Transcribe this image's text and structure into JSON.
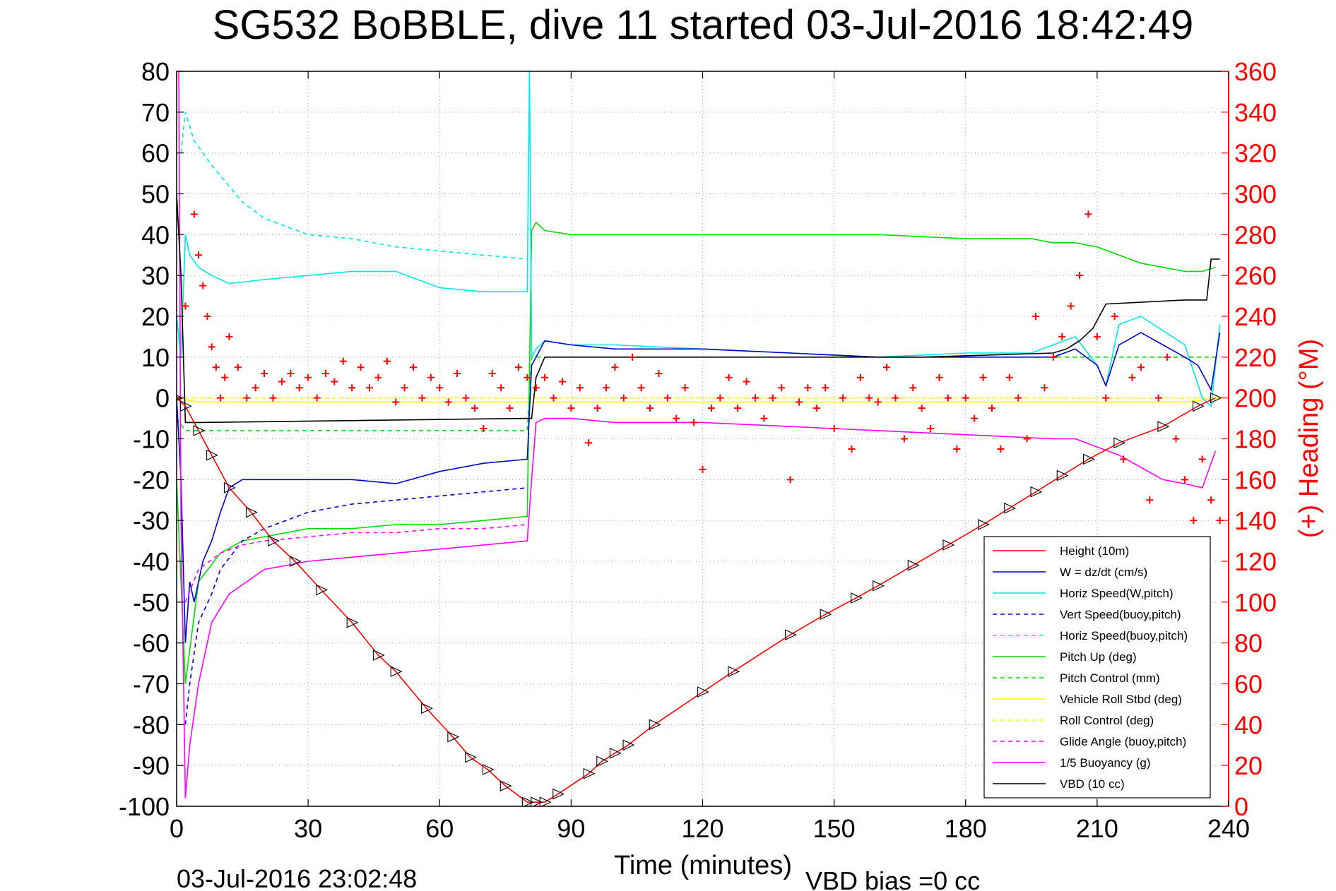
{
  "chart_data": {
    "type": "line",
    "title": "SG532 BoBBLE, dive 11 started 03-Jul-2016 18:42:49",
    "xlabel": "Time (minutes)",
    "ylabel": "",
    "y2label": "(+) Heading (°M)",
    "xlim": [
      0,
      240
    ],
    "ylim": [
      -100,
      80
    ],
    "y2lim": [
      0,
      360
    ],
    "xticks": [
      "0",
      "30",
      "60",
      "90",
      "120",
      "150",
      "180",
      "210",
      "240"
    ],
    "yticks": [
      "80",
      "70",
      "60",
      "50",
      "40",
      "30",
      "20",
      "10",
      "0",
      "-10",
      "-20",
      "-30",
      "-40",
      "-50",
      "-60",
      "-70",
      "-80",
      "-90",
      "-100"
    ],
    "y2ticks": [
      "360",
      "340",
      "320",
      "300",
      "280",
      "260",
      "240",
      "220",
      "200",
      "180",
      "160",
      "140",
      "120",
      "100",
      "80",
      "60",
      "40",
      "20",
      "0"
    ],
    "grid": true,
    "legend_position": "lower-right",
    "footer_left": "03-Jul-2016 23:02:48",
    "footer_right": "VBD bias =0 cc",
    "colors": {
      "height": "#ff0000",
      "w": "#0000cc",
      "horiz": "#00e5e5",
      "pitch": "#00dd00",
      "roll": "#ffff00",
      "glide": "#ff00ff",
      "vbd": "#000000",
      "heading": "#ff0000"
    },
    "series": [
      {
        "name": "Height (10m)",
        "color": "#ff0000",
        "dash": "",
        "marker": "triangle",
        "x": [
          0,
          2,
          5,
          8,
          12,
          17,
          22,
          27,
          33,
          40,
          46,
          50,
          57,
          63,
          67,
          71,
          75,
          80,
          82,
          84,
          87,
          94,
          97,
          100,
          103,
          109,
          120,
          127,
          140,
          148,
          155,
          160,
          168,
          176,
          184,
          190,
          196,
          202,
          208,
          215,
          225,
          233,
          237
        ],
        "y": [
          0,
          -2,
          -8,
          -14,
          -22,
          -28,
          -35,
          -40,
          -47,
          -55,
          -63,
          -67,
          -76,
          -83,
          -88,
          -91,
          -95,
          -99,
          -99,
          -99,
          -97,
          -92,
          -89,
          -87,
          -85,
          -80,
          -72,
          -67,
          -58,
          -53,
          -49,
          -46,
          -41,
          -36,
          -31,
          -27,
          -23,
          -19,
          -15,
          -11,
          -7,
          -2,
          0
        ]
      },
      {
        "name": "W = dz/dt (cm/s)",
        "color": "#0000cc",
        "dash": "",
        "x": [
          0,
          1,
          2,
          3,
          4,
          6,
          8,
          10,
          12,
          15,
          20,
          30,
          40,
          50,
          60,
          70,
          80,
          81,
          84,
          90,
          100,
          120,
          140,
          160,
          180,
          195,
          200,
          205,
          210,
          212,
          215,
          220,
          230,
          233,
          236,
          238
        ],
        "y": [
          0,
          -20,
          -60,
          -45,
          -50,
          -40,
          -35,
          -28,
          -22,
          -20,
          -20,
          -20,
          -20,
          -21,
          -18,
          -16,
          -15,
          8,
          14,
          13,
          12,
          12,
          11,
          10,
          10,
          10,
          10,
          12,
          8,
          3,
          13,
          16,
          10,
          8,
          2,
          16
        ]
      },
      {
        "name": "Horiz Speed(W,pitch)",
        "color": "#00e5e5",
        "dash": "",
        "x": [
          0,
          1,
          2,
          3,
          5,
          8,
          12,
          20,
          30,
          40,
          50,
          60,
          70,
          80,
          80.5,
          81,
          82,
          84,
          90,
          100,
          120,
          140,
          160,
          180,
          195,
          200,
          205,
          210,
          212,
          215,
          220,
          230,
          234,
          236,
          238
        ],
        "y": [
          20,
          10,
          40,
          35,
          32,
          30,
          28,
          29,
          30,
          31,
          31,
          27,
          26,
          26,
          80,
          10,
          12,
          14,
          13,
          13,
          12,
          11,
          10,
          11,
          11,
          13,
          15,
          8,
          3,
          18,
          20,
          13,
          0,
          -2,
          18
        ]
      },
      {
        "name": "Vert Speed(buoy,pitch)",
        "color": "#0000cc",
        "dash": "6,5",
        "x": [
          2,
          3,
          5,
          8,
          10,
          15,
          20,
          30,
          40,
          50,
          60,
          70,
          80
        ],
        "y": [
          -80,
          -70,
          -55,
          -48,
          -42,
          -35,
          -32,
          -28,
          -26,
          -25,
          -24,
          -23,
          -22
        ]
      },
      {
        "name": "Horiz Speed(buoy,pitch)",
        "color": "#00e5e5",
        "dash": "6,5",
        "x": [
          1,
          2,
          4,
          8,
          15,
          20,
          30,
          40,
          50,
          60,
          70,
          80
        ],
        "y": [
          60,
          70,
          63,
          57,
          48,
          44,
          40,
          39,
          37,
          36,
          35,
          34
        ]
      },
      {
        "name": "Pitch Up (deg)",
        "color": "#00dd00",
        "dash": "",
        "x": [
          0,
          2,
          5,
          10,
          15,
          20,
          30,
          40,
          50,
          60,
          70,
          80,
          81,
          82,
          84,
          90,
          100,
          120,
          140,
          160,
          180,
          195,
          200,
          205,
          210,
          215,
          220,
          230,
          234,
          237
        ],
        "y": [
          -20,
          -70,
          -45,
          -38,
          -35,
          -34,
          -32,
          -32,
          -31,
          -31,
          -30,
          -29,
          41,
          43,
          41,
          40,
          40,
          40,
          40,
          40,
          39,
          39,
          38,
          38,
          37,
          35,
          33,
          31,
          31,
          32
        ]
      },
      {
        "name": "Pitch Control (mm)",
        "color": "#00dd00",
        "dash": "6,5",
        "x": [
          0,
          2,
          4,
          6,
          20,
          40,
          60,
          80,
          81,
          84,
          120,
          160,
          200,
          238
        ],
        "y": [
          -5,
          -8,
          -8,
          -8,
          -8,
          -8,
          -8,
          -8,
          10,
          10,
          10,
          10,
          10,
          10
        ]
      },
      {
        "name": "Vehicle Roll Stbd (deg)",
        "color": "#ffff00",
        "dash": "",
        "x": [
          0,
          5,
          10,
          20,
          30,
          40,
          50,
          60,
          70,
          80,
          84,
          90,
          100,
          120,
          140,
          160,
          180,
          200,
          210,
          220,
          230,
          238
        ],
        "y": [
          0,
          -1,
          -1,
          -1,
          -1,
          -1,
          -1,
          -1,
          -1,
          -1,
          -1,
          -1,
          -1,
          -1,
          -1,
          -1,
          -1,
          -1,
          -1,
          -1,
          -1,
          0
        ]
      },
      {
        "name": "Roll Control (deg)",
        "color": "#ffff00",
        "dash": "6,5",
        "x": [
          0,
          240
        ],
        "y": [
          0,
          0
        ]
      },
      {
        "name": "Glide Angle (buoy,pitch)",
        "color": "#ff00ff",
        "dash": "6,5",
        "x": [
          2,
          5,
          10,
          15,
          20,
          30,
          40,
          50,
          60,
          70,
          80
        ],
        "y": [
          -50,
          -42,
          -38,
          -36,
          -35,
          -34,
          -33,
          -33,
          -32,
          -32,
          -31
        ]
      },
      {
        "name": "1/5 Buoyancy (g)",
        "color": "#ff00ff",
        "dash": "",
        "x": [
          0.5,
          1,
          2,
          3,
          5,
          8,
          12,
          20,
          30,
          40,
          50,
          60,
          70,
          80,
          81,
          82,
          84,
          90,
          100,
          120,
          140,
          160,
          180,
          200,
          205,
          210,
          215,
          220,
          225,
          230,
          234,
          237
        ],
        "y": [
          80,
          -30,
          -98,
          -85,
          -70,
          -55,
          -48,
          -42,
          -40,
          -39,
          -38,
          -37,
          -36,
          -35,
          -20,
          -6,
          -5,
          -5,
          -6,
          -6,
          -7,
          -8,
          -9,
          -10,
          -10,
          -12,
          -14,
          -17,
          -20,
          -21,
          -22,
          -13
        ]
      },
      {
        "name": "VBD (10 cc)",
        "color": "#000000",
        "dash": "",
        "x": [
          0,
          1,
          2,
          3,
          4,
          5,
          80,
          81,
          82,
          84,
          85,
          86,
          150,
          170,
          200,
          203,
          206,
          209,
          212,
          230,
          235,
          236,
          238
        ],
        "y": [
          50,
          30,
          -6,
          -6,
          -6,
          -6,
          -5,
          -5,
          5,
          10,
          10,
          10,
          10,
          10,
          11,
          12,
          14,
          17,
          23,
          24,
          24,
          34,
          34
        ]
      }
    ],
    "heading_series": {
      "name": "(+) Heading",
      "x": [
        0,
        2,
        4,
        5,
        6,
        7,
        8,
        9,
        10,
        11,
        12,
        14,
        16,
        18,
        20,
        22,
        24,
        26,
        28,
        30,
        32,
        34,
        36,
        38,
        40,
        42,
        44,
        46,
        48,
        50,
        52,
        54,
        56,
        58,
        60,
        62,
        64,
        66,
        68,
        70,
        72,
        74,
        76,
        78,
        80,
        82,
        84,
        86,
        88,
        90,
        92,
        94,
        96,
        98,
        100,
        102,
        104,
        106,
        108,
        110,
        112,
        114,
        116,
        118,
        120,
        122,
        124,
        126,
        128,
        130,
        132,
        134,
        136,
        138,
        140,
        142,
        144,
        146,
        148,
        150,
        152,
        154,
        156,
        158,
        160,
        162,
        164,
        166,
        168,
        170,
        172,
        174,
        176,
        178,
        180,
        182,
        184,
        186,
        188,
        190,
        192,
        194,
        196,
        198,
        200,
        202,
        204,
        206,
        208,
        210,
        212,
        214,
        216,
        218,
        220,
        222,
        224,
        226,
        228,
        230,
        232,
        234,
        236,
        238
      ],
      "y": [
        200,
        245,
        290,
        270,
        255,
        240,
        225,
        215,
        200,
        210,
        230,
        215,
        200,
        205,
        212,
        200,
        208,
        212,
        205,
        210,
        200,
        212,
        208,
        218,
        205,
        215,
        205,
        210,
        218,
        198,
        205,
        215,
        200,
        210,
        205,
        198,
        212,
        200,
        195,
        185,
        212,
        205,
        195,
        215,
        210,
        205,
        210,
        200,
        208,
        195,
        205,
        178,
        195,
        205,
        215,
        200,
        220,
        205,
        195,
        212,
        200,
        190,
        205,
        188,
        165,
        195,
        200,
        210,
        195,
        208,
        200,
        190,
        200,
        205,
        160,
        198,
        205,
        195,
        205,
        185,
        200,
        175,
        210,
        200,
        198,
        215,
        200,
        180,
        205,
        195,
        185,
        210,
        200,
        175,
        200,
        190,
        210,
        195,
        175,
        210,
        200,
        180,
        240,
        205,
        220,
        230,
        245,
        260,
        290,
        230,
        200,
        240,
        170,
        210,
        215,
        150,
        200,
        220,
        180,
        160,
        140,
        170,
        150,
        140
      ]
    }
  }
}
